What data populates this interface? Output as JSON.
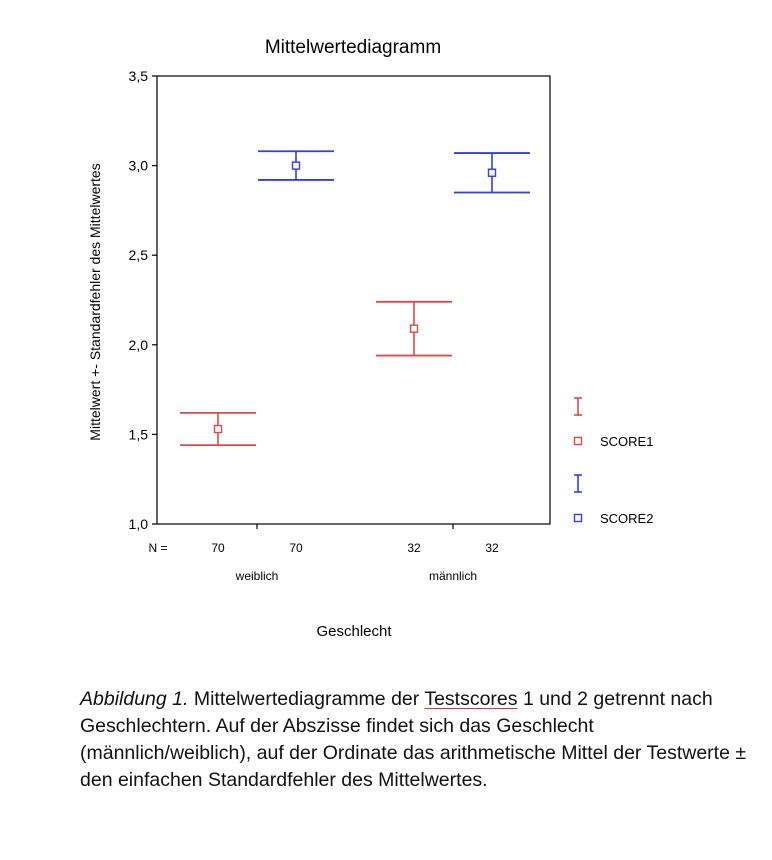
{
  "chart_data": {
    "type": "errorbar",
    "title": "Mittelwertediagramm",
    "ylabel": "Mittelwert +- Standardfehler des Mittelwertes",
    "xlabel": "Geschlecht",
    "categories": [
      "weiblich",
      "männlich"
    ],
    "ylim": [
      1.0,
      3.5
    ],
    "yticks": [
      1.0,
      1.5,
      2.0,
      2.5,
      3.0,
      3.5
    ],
    "ytick_labels": [
      "1,0",
      "1,5",
      "2,0",
      "2,5",
      "3,0",
      "3,5"
    ],
    "n_label": "N =",
    "series": [
      {
        "name": "SCORE1",
        "color": "#e04848",
        "means": [
          1.53,
          2.09
        ],
        "lower": [
          1.44,
          1.94
        ],
        "upper": [
          1.62,
          2.24
        ],
        "n": [
          "70",
          "32"
        ]
      },
      {
        "name": "SCORE2",
        "color": "#2f3fe0",
        "means": [
          3.0,
          2.96
        ],
        "lower": [
          2.92,
          2.85
        ],
        "upper": [
          3.08,
          3.07
        ],
        "n": [
          "70",
          "32"
        ]
      }
    ],
    "legend_position": "right"
  },
  "caption": {
    "label": "Abbildung 1.",
    "part1": " Mittelwertediagramme der ",
    "underlined": "Testscores",
    "part2": " 1 und 2 getrennt nach Geschlechtern. Auf der Abszisse findet sich das Geschlecht (männlich/weiblich), auf der Ordinate das arithmetische Mittel der Testwerte ± den einfachen Standardfehler des Mittelwertes."
  }
}
